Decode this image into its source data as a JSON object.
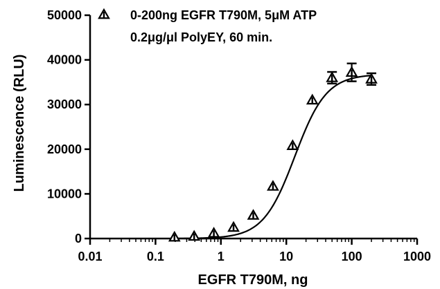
{
  "chart_data": {
    "type": "scatter",
    "x_scale": "log",
    "xlabel": "EGFR T790M, ng",
    "ylabel": "Luminescence (RLU)",
    "xlim": [
      0.01,
      1000
    ],
    "ylim": [
      0,
      50000
    ],
    "x_tick_labels": [
      "0.01",
      "0.1",
      "1",
      "10",
      "100",
      "1000"
    ],
    "x_ticks": [
      0.01,
      0.1,
      1,
      10,
      100,
      1000
    ],
    "y_tick_labels": [
      "0",
      "10000",
      "20000",
      "30000",
      "40000",
      "50000"
    ],
    "y_ticks": [
      0,
      10000,
      20000,
      30000,
      40000,
      50000
    ],
    "legend": {
      "placement": "top-left",
      "line1": "0-200ng EGFR T790M, 5μM ATP",
      "line2": "0.2μg/μl PolyEY, 60 min."
    },
    "series": [
      {
        "marker": "triangle",
        "x": [
          0.195,
          0.39,
          0.78,
          1.56,
          3.125,
          6.25,
          12.5,
          25,
          50,
          100,
          200
        ],
        "y": [
          300,
          500,
          1200,
          2500,
          5200,
          11700,
          20800,
          31000,
          36000,
          37200,
          35700
        ],
        "error": [
          0,
          0,
          0,
          0,
          0,
          0,
          0,
          0,
          1300,
          2000,
          1300
        ]
      }
    ],
    "fit": {
      "type": "sigmoidal",
      "bottom": 0,
      "top": 36800,
      "ec50": 13.5,
      "hill": 1.8
    }
  }
}
